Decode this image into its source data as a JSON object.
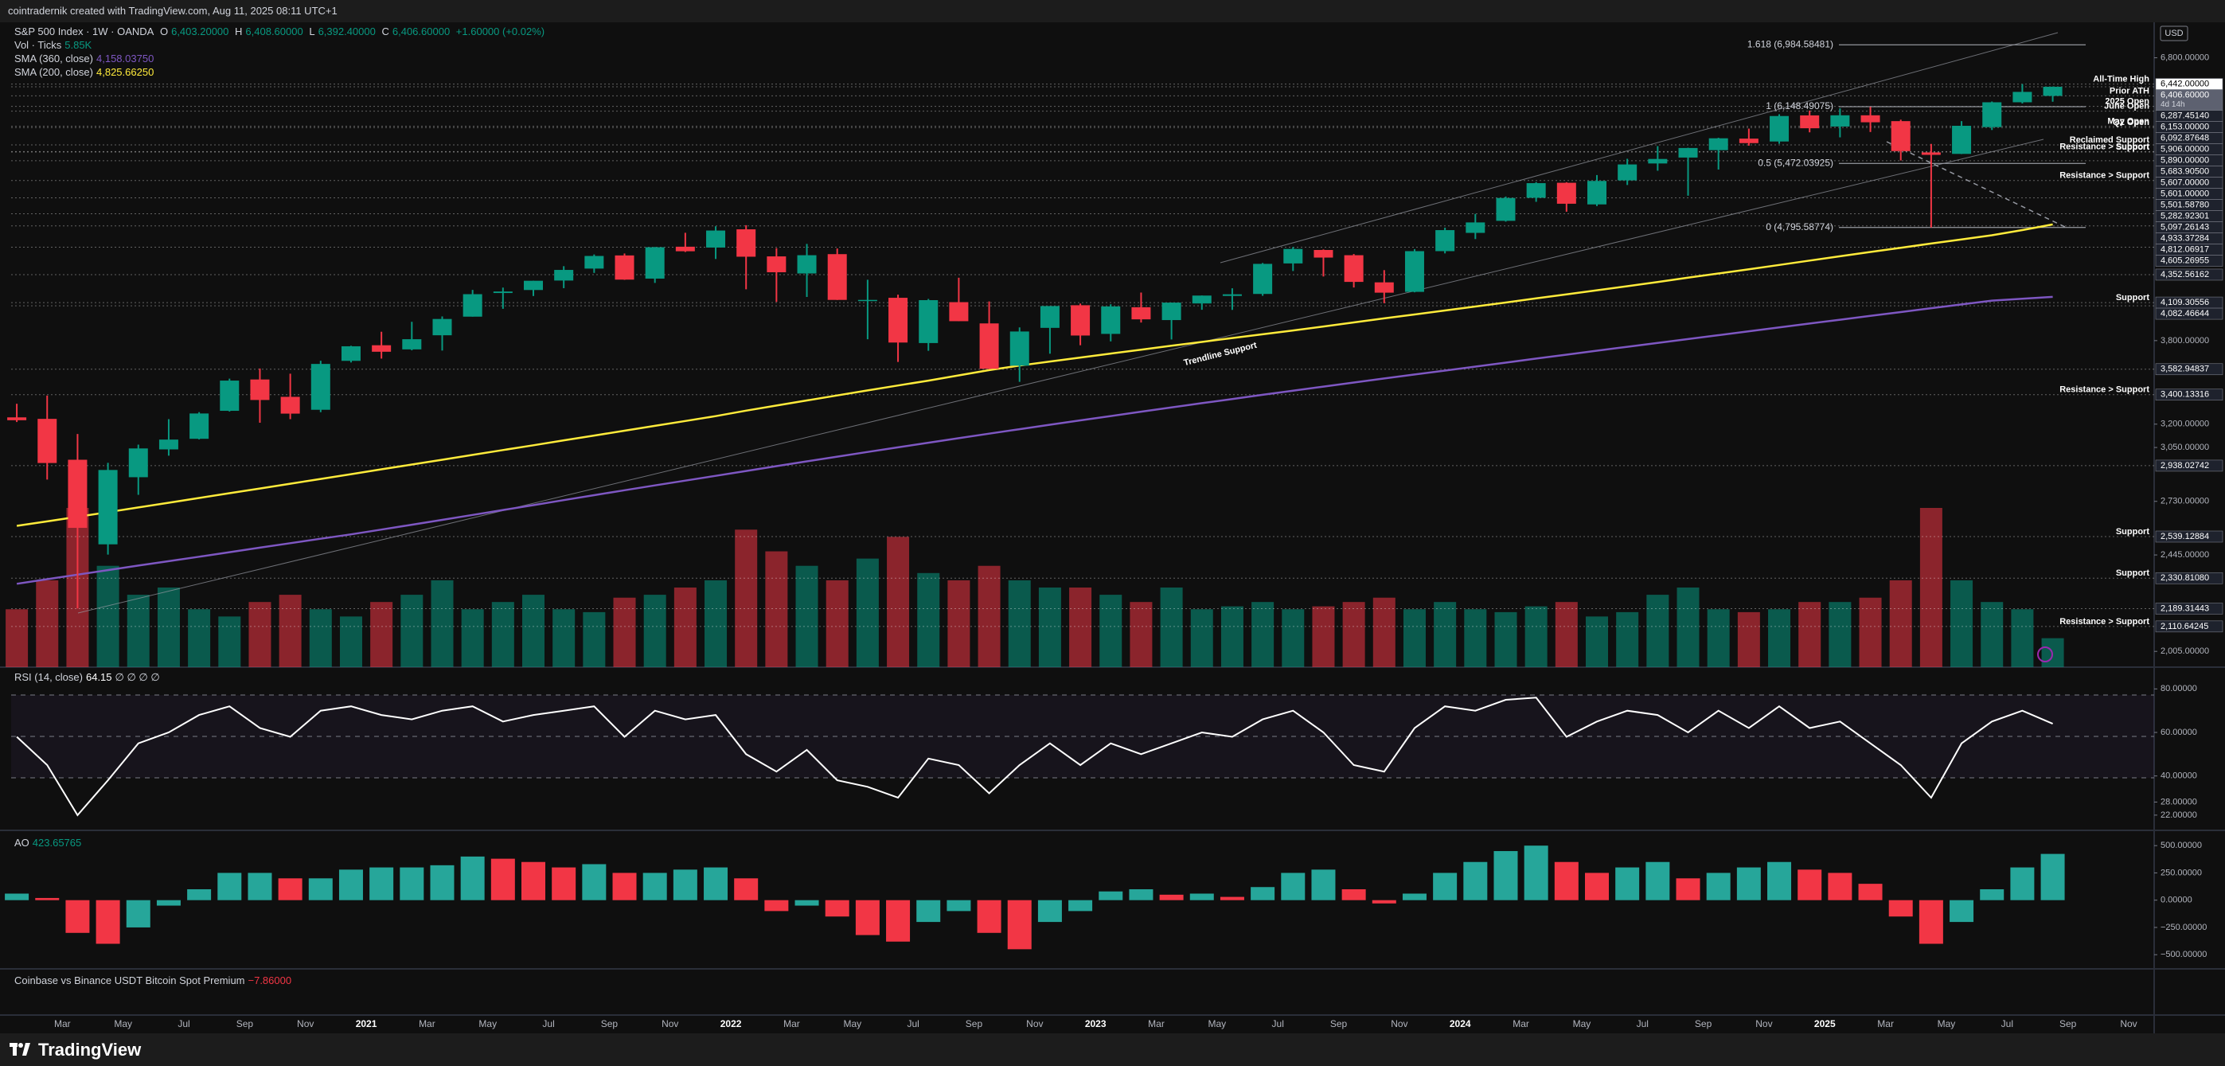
{
  "header": {
    "text": "cointradernik created with TradingView.com, Aug 11, 2025 08:11 UTC+1"
  },
  "footer": {
    "brand": "TradingView"
  },
  "price_axis": {
    "currency": "USD"
  },
  "chart_data": [
    {
      "type": "candlestick",
      "title": "S&P 500 Index · 1W · OANDA",
      "ohlc_legend": [
        {
          "key": "O",
          "value": "6,403.20000"
        },
        {
          "key": "H",
          "value": "6,408.60000"
        },
        {
          "key": "L",
          "value": "6,392.40000"
        },
        {
          "key": "C",
          "value": "6,406.60000"
        }
      ],
      "change": "+1.60000 (+0.02%)",
      "x": [
        "2020-01",
        "2020-02",
        "2020-03",
        "2020-04",
        "2020-05",
        "2020-06",
        "2020-07",
        "2020-08",
        "2020-09",
        "2020-10",
        "2020-11",
        "2020-12",
        "2021-01",
        "2021-02",
        "2021-03",
        "2021-04",
        "2021-05",
        "2021-06",
        "2021-07",
        "2021-08",
        "2021-09",
        "2021-10",
        "2021-11",
        "2021-12",
        "2022-01",
        "2022-02",
        "2022-03",
        "2022-04",
        "2022-05",
        "2022-06",
        "2022-07",
        "2022-08",
        "2022-09",
        "2022-10",
        "2022-11",
        "2022-12",
        "2023-01",
        "2023-02",
        "2023-03",
        "2023-04",
        "2023-05",
        "2023-06",
        "2023-07",
        "2023-08",
        "2023-09",
        "2023-10",
        "2023-11",
        "2023-12",
        "2024-01",
        "2024-02",
        "2024-03",
        "2024-04",
        "2024-05",
        "2024-06",
        "2024-07",
        "2024-08",
        "2024-09",
        "2024-10",
        "2024-11",
        "2024-12",
        "2025-01",
        "2025-02",
        "2025-03",
        "2025-04",
        "2025-05",
        "2025-06",
        "2025-07",
        "2025-08"
      ],
      "open": [
        3245,
        3235,
        2974,
        2499,
        2869,
        3038,
        3105,
        3289,
        3508,
        3385,
        3296,
        3645,
        3764,
        3732,
        3842,
        3992,
        4191,
        4217,
        4300,
        4407,
        4528,
        4317,
        4610,
        4602,
        4778,
        4519,
        4363,
        4540,
        4131,
        4150,
        3781,
        4113,
        3937,
        3609,
        3901,
        4087,
        3853,
        4070,
        3964,
        4102,
        4166,
        4183,
        4454,
        4579,
        4530,
        4284,
        4201,
        4568,
        4743,
        4862,
        5098,
        5258,
        5029,
        5284,
        5471,
        5538,
        5623,
        5758,
        5724,
        6040,
        5903,
        6041,
        5969,
        5597,
        5580,
        5896,
        6205,
        6287
      ],
      "high": [
        3337,
        3394,
        3136,
        2955,
        3068,
        3233,
        3280,
        3514,
        3588,
        3550,
        3646,
        3760,
        3870,
        3950,
        3994,
        4218,
        4238,
        4298,
        4429,
        4537,
        4546,
        4608,
        4744,
        4808,
        4818,
        4596,
        4637,
        4593,
        4307,
        4177,
        4140,
        4325,
        4119,
        3905,
        4080,
        4101,
        4095,
        4195,
        4110,
        4170,
        4232,
        4458,
        4607,
        4584,
        4541,
        4393,
        4587,
        4794,
        4932,
        5111,
        5265,
        5264,
        5342,
        5524,
        5670,
        5651,
        5768,
        5878,
        6054,
        6100,
        6128,
        6147,
        5987,
        5696,
        5969,
        6215,
        6442,
        6409
      ],
      "low": [
        3214,
        2855,
        2190,
        2447,
        2767,
        2999,
        3101,
        3284,
        3209,
        3233,
        3280,
        3633,
        3662,
        3725,
        3723,
        3992,
        4057,
        4165,
        4233,
        4368,
        4306,
        4279,
        4560,
        4495,
        4223,
        4115,
        4157,
        4132,
        3811,
        3637,
        3721,
        3955,
        3584,
        3491,
        3699,
        3764,
        3794,
        3944,
        3809,
        4049,
        4048,
        4167,
        4385,
        4336,
        4239,
        4104,
        4197,
        4547,
        4683,
        4854,
        5056,
        4954,
        5012,
        5234,
        5390,
        5120,
        5403,
        5675,
        5697,
        5833,
        5773,
        5837,
        5505,
        4796,
        5578,
        5861,
        6190,
        6212
      ],
      "close": [
        3226,
        2954,
        2585,
        2912,
        3044,
        3100,
        3271,
        3500,
        3363,
        3270,
        3622,
        3756,
        3714,
        3811,
        3973,
        4181,
        4204,
        4298,
        4395,
        4523,
        4308,
        4605,
        4567,
        4766,
        4516,
        4374,
        4530,
        4132,
        4132,
        3785,
        4130,
        3955,
        3586,
        3872,
        4080,
        3840,
        4077,
        3970,
        4109,
        4169,
        4180,
        4450,
        4589,
        4508,
        4288,
        4194,
        4568,
        4770,
        4846,
        5096,
        5254,
        5036,
        5278,
        5460,
        5522,
        5648,
        5762,
        5705,
        6032,
        5882,
        6041,
        5955,
        5612,
        5569,
        5912,
        6205,
        6339,
        6406.6
      ],
      "up_color": "#089981",
      "down_color": "#f23645",
      "volume": {
        "name": "Vol · Ticks",
        "legend_value": "5.85K",
        "values": [
          40,
          60,
          110,
          70,
          50,
          55,
          40,
          35,
          45,
          50,
          40,
          35,
          45,
          50,
          60,
          40,
          45,
          50,
          40,
          38,
          48,
          50,
          55,
          60,
          95,
          80,
          70,
          60,
          75,
          90,
          65,
          60,
          70,
          60,
          55,
          55,
          50,
          45,
          55,
          40,
          42,
          45,
          40,
          42,
          45,
          48,
          40,
          45,
          40,
          38,
          42,
          45,
          35,
          38,
          50,
          55,
          40,
          38,
          40,
          45,
          45,
          48,
          60,
          110,
          60,
          45,
          40,
          20
        ]
      },
      "series": [
        {
          "name": "SMA (360, close)",
          "legend_value": "4,158.03750",
          "color": "#7e57c2",
          "values": [
            2304,
            2326,
            2348,
            2370,
            2392,
            2414,
            2436,
            2459,
            2482,
            2505,
            2528,
            2551,
            2576,
            2602,
            2628,
            2655,
            2682,
            2709,
            2737,
            2765,
            2793,
            2821,
            2849,
            2877,
            2906,
            2935,
            2964,
            2993,
            3022,
            3051,
            3080,
            3109,
            3138,
            3167,
            3196,
            3225,
            3254,
            3283,
            3312,
            3341,
            3370,
            3399,
            3428,
            3457,
            3486,
            3515,
            3544,
            3573,
            3602,
            3632,
            3662,
            3692,
            3722,
            3752,
            3782,
            3812,
            3843,
            3874,
            3905,
            3936,
            3967,
            3998,
            4030,
            4062,
            4094,
            4126,
            4142,
            4158
          ]
        },
        {
          "name": "SMA (200, close)",
          "legend_value": "4,825.66250",
          "color": "#ffeb3b",
          "values": [
            2596,
            2620,
            2645,
            2670,
            2696,
            2722,
            2749,
            2776,
            2803,
            2831,
            2859,
            2887,
            2916,
            2945,
            2974,
            3004,
            3034,
            3064,
            3095,
            3126,
            3157,
            3189,
            3221,
            3253,
            3290,
            3325,
            3360,
            3395,
            3430,
            3465,
            3500,
            3538,
            3576,
            3610,
            3640,
            3670,
            3700,
            3730,
            3760,
            3790,
            3820,
            3850,
            3880,
            3912,
            3945,
            3978,
            4010,
            4043,
            4076,
            4110,
            4145,
            4180,
            4215,
            4250,
            4287,
            4325,
            4363,
            4400,
            4440,
            4480,
            4520,
            4560,
            4600,
            4640,
            4680,
            4720,
            4770,
            4826
          ]
        }
      ],
      "log_scale": true,
      "ylim": [
        1941,
        7315
      ],
      "yticks": [
        {
          "value": 6800,
          "label": "6,800.00000"
        },
        {
          "value": 3800,
          "label": "3,800.00000"
        },
        {
          "value": 3200,
          "label": "3,200.00000"
        },
        {
          "value": 3050,
          "label": "3,050.00000"
        },
        {
          "value": 2730,
          "label": "2,730.00000"
        },
        {
          "value": 2445,
          "label": "2,445.00000"
        },
        {
          "value": 2005,
          "label": "2,005.00000"
        }
      ],
      "xlim": [
        "2020-01",
        "2025-11"
      ],
      "xticks": [
        {
          "value": "2020-03",
          "label": "Mar"
        },
        {
          "value": "2020-05",
          "label": "May"
        },
        {
          "value": "2020-07",
          "label": "Jul"
        },
        {
          "value": "2020-09",
          "label": "Sep"
        },
        {
          "value": "2020-11",
          "label": "Nov"
        },
        {
          "value": "2021-01",
          "label": "2021"
        },
        {
          "value": "2021-03",
          "label": "Mar"
        },
        {
          "value": "2021-05",
          "label": "May"
        },
        {
          "value": "2021-07",
          "label": "Jul"
        },
        {
          "value": "2021-09",
          "label": "Sep"
        },
        {
          "value": "2021-11",
          "label": "Nov"
        },
        {
          "value": "2022-01",
          "label": "2022"
        },
        {
          "value": "2022-03",
          "label": "Mar"
        },
        {
          "value": "2022-05",
          "label": "May"
        },
        {
          "value": "2022-07",
          "label": "Jul"
        },
        {
          "value": "2022-09",
          "label": "Sep"
        },
        {
          "value": "2022-11",
          "label": "Nov"
        },
        {
          "value": "2023-01",
          "label": "2023"
        },
        {
          "value": "2023-03",
          "label": "Mar"
        },
        {
          "value": "2023-05",
          "label": "May"
        },
        {
          "value": "2023-07",
          "label": "Jul"
        },
        {
          "value": "2023-09",
          "label": "Sep"
        },
        {
          "value": "2023-11",
          "label": "Nov"
        },
        {
          "value": "2024-01",
          "label": "2024"
        },
        {
          "value": "2024-03",
          "label": "Mar"
        },
        {
          "value": "2024-05",
          "label": "May"
        },
        {
          "value": "2024-07",
          "label": "Jul"
        },
        {
          "value": "2024-09",
          "label": "Sep"
        },
        {
          "value": "2024-11",
          "label": "Nov"
        },
        {
          "value": "2025-01",
          "label": "2025"
        },
        {
          "value": "2025-03",
          "label": "Mar"
        },
        {
          "value": "2025-05",
          "label": "May"
        },
        {
          "value": "2025-07",
          "label": "Jul"
        },
        {
          "value": "2025-09",
          "label": "Sep"
        },
        {
          "value": "2025-11",
          "label": "Nov"
        }
      ],
      "levels": [
        {
          "value": 6442,
          "label": "6,442.00000",
          "note": "All-Time High",
          "highlight": true
        },
        {
          "value": 6406.6,
          "label": "6,406.60000",
          "countdown": "4d 14h",
          "current": true
        },
        {
          "value": 6287.4514,
          "label": "6,287.45140",
          "note": "Prior ATH"
        },
        {
          "value": 6153,
          "label": "6,153.00000",
          "note": "2025 Open"
        },
        {
          "value": 6092.87648,
          "label": "6,092.87648",
          "note": "June Open"
        },
        {
          "value": 5906,
          "label": "5,906.00000",
          "note": "May Open"
        },
        {
          "value": 5890,
          "label": "5,890.00000",
          "note": "Q2 Open"
        },
        {
          "value": 5683.905,
          "label": "5,683.90500",
          "note": "Reclaimed Support"
        },
        {
          "value": 5607,
          "label": "5,607.00000",
          "note": "Resistance > Support"
        },
        {
          "value": 5601,
          "label": "5,601.00000",
          "note": "Support"
        },
        {
          "value": 5501.5878,
          "label": "5,501.58780"
        },
        {
          "value": 5282.92301,
          "label": "5,282.92301",
          "note": "Resistance > Support"
        },
        {
          "value": 5097.26143,
          "label": "5,097.26143"
        },
        {
          "value": 4933.37284,
          "label": "4,933.37284"
        },
        {
          "value": 4812.06917,
          "label": "4,812.06917"
        },
        {
          "value": 4605.26955,
          "label": "4,605.26955"
        },
        {
          "value": 4352.56162,
          "label": "4,352.56162"
        },
        {
          "value": 4109.30556,
          "label": "4,109.30556",
          "note": "Support"
        },
        {
          "value": 4082.46644,
          "label": "4,082.46644"
        },
        {
          "value": 3582.94837,
          "label": "3,582.94837"
        },
        {
          "value": 3400.13316,
          "label": "3,400.13316",
          "note": "Resistance > Support"
        },
        {
          "value": 2938.02742,
          "label": "2,938.02742"
        },
        {
          "value": 2539.12884,
          "label": "2,539.12884",
          "note": "Support"
        },
        {
          "value": 2330.8108,
          "label": "2,330.81080",
          "note": "Support"
        },
        {
          "value": 2189.31443,
          "label": "2,189.31443"
        },
        {
          "value": 2110.64245,
          "label": "2,110.64245",
          "note": "Resistance > Support"
        }
      ],
      "fibs": [
        {
          "value": 6984.58481,
          "label": "1.618 (6,984.58481)"
        },
        {
          "value": 6148.49075,
          "label": "1 (6,148.49075)"
        },
        {
          "value": 5472.03925,
          "label": "0.5 (5,472.03925)"
        },
        {
          "value": 4795.58774,
          "label": "0 (4,795.58774)"
        }
      ],
      "annotations": [
        {
          "text": "Trendline Support"
        }
      ]
    },
    {
      "type": "line",
      "title": "RSI (14, close)",
      "legend_value": "64.15",
      "legend_extra": "∅ ∅ ∅ ∅",
      "color": "#ffffff",
      "values": [
        58,
        45,
        22,
        38,
        55,
        60,
        68,
        72,
        62,
        58,
        70,
        72,
        68,
        66,
        70,
        72,
        65,
        68,
        70,
        72,
        58,
        70,
        66,
        68,
        50,
        42,
        52,
        38,
        35,
        30,
        48,
        45,
        32,
        45,
        55,
        45,
        55,
        50,
        55,
        60,
        58,
        66,
        70,
        60,
        45,
        42,
        62,
        72,
        70,
        75,
        76,
        58,
        65,
        70,
        68,
        60,
        70,
        62,
        72,
        62,
        65,
        55,
        45,
        30,
        55,
        65,
        70,
        64
      ],
      "ylim": [
        15,
        90
      ],
      "yticks": [
        {
          "value": 80,
          "label": "80.00000"
        },
        {
          "value": 60,
          "label": "60.00000"
        },
        {
          "value": 40,
          "label": "40.00000"
        },
        {
          "value": 28,
          "label": "28.00000"
        },
        {
          "value": 22,
          "label": "22.00000"
        }
      ]
    },
    {
      "type": "bar",
      "title": "AO",
      "legend_value": "423.65765",
      "up_color": "#26a69a",
      "down_color": "#f23645",
      "values": [
        60,
        20,
        -300,
        -400,
        -250,
        -50,
        100,
        250,
        250,
        200,
        200,
        280,
        300,
        300,
        320,
        400,
        380,
        350,
        300,
        330,
        250,
        250,
        280,
        300,
        200,
        -100,
        -50,
        -150,
        -320,
        -380,
        -200,
        -100,
        -300,
        -450,
        -200,
        -100,
        80,
        100,
        50,
        60,
        30,
        120,
        250,
        280,
        100,
        -30,
        60,
        250,
        350,
        450,
        500,
        350,
        250,
        300,
        350,
        200,
        250,
        300,
        350,
        280,
        250,
        150,
        -150,
        -400,
        -200,
        100,
        300,
        424
      ],
      "ylim": [
        -630,
        640
      ],
      "yticks": [
        {
          "value": 500,
          "label": "500.00000"
        },
        {
          "value": 250,
          "label": "250.00000"
        },
        {
          "value": 0,
          "label": "0.00000"
        },
        {
          "value": -250,
          "label": "−250.00000"
        },
        {
          "value": -500,
          "label": "−500.00000"
        }
      ]
    },
    {
      "type": "line",
      "title": "Coinbase vs Binance USDT Bitcoin Spot Premium",
      "legend_value": "−7.86000"
    }
  ]
}
